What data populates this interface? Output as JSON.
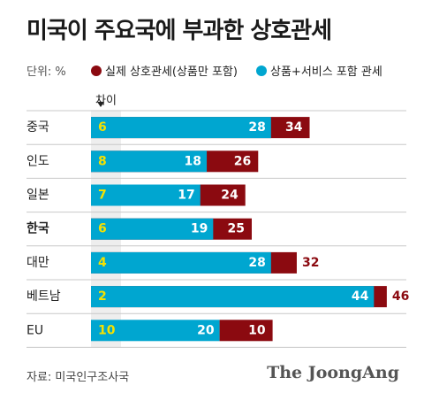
{
  "title": "미국이 주요국에 부과한 상호관세",
  "unit_label": "단위: %",
  "legend": [
    {
      "label": "실제 상호관세(상품만 포함)",
      "color": "#8b0a10"
    },
    {
      "label": "상품+서비스 포함 관세",
      "color": "#00a6d0"
    }
  ],
  "diff_label": "차이",
  "source": "자료: 미국인구조사국",
  "logo": "The JoongAng",
  "chart_data": {
    "type": "bar",
    "categories": [
      "중국",
      "인도",
      "일본",
      "한국",
      "대만",
      "베트남",
      "EU"
    ],
    "bold_category": "한국",
    "series": [
      {
        "name": "실제 상호관세(상품만 포함)",
        "values": [
          34,
          26,
          24,
          25,
          32,
          46,
          10
        ]
      },
      {
        "name": "상품+서비스 포함 관세",
        "values": [
          28,
          18,
          17,
          19,
          28,
          44,
          20
        ]
      }
    ],
    "difference": [
      6,
      8,
      7,
      6,
      4,
      2,
      10
    ],
    "colors": {
      "actual": "#8b0a10",
      "services": "#00a6d0",
      "diff": "#f5e100",
      "band": "#eeeeee"
    }
  }
}
